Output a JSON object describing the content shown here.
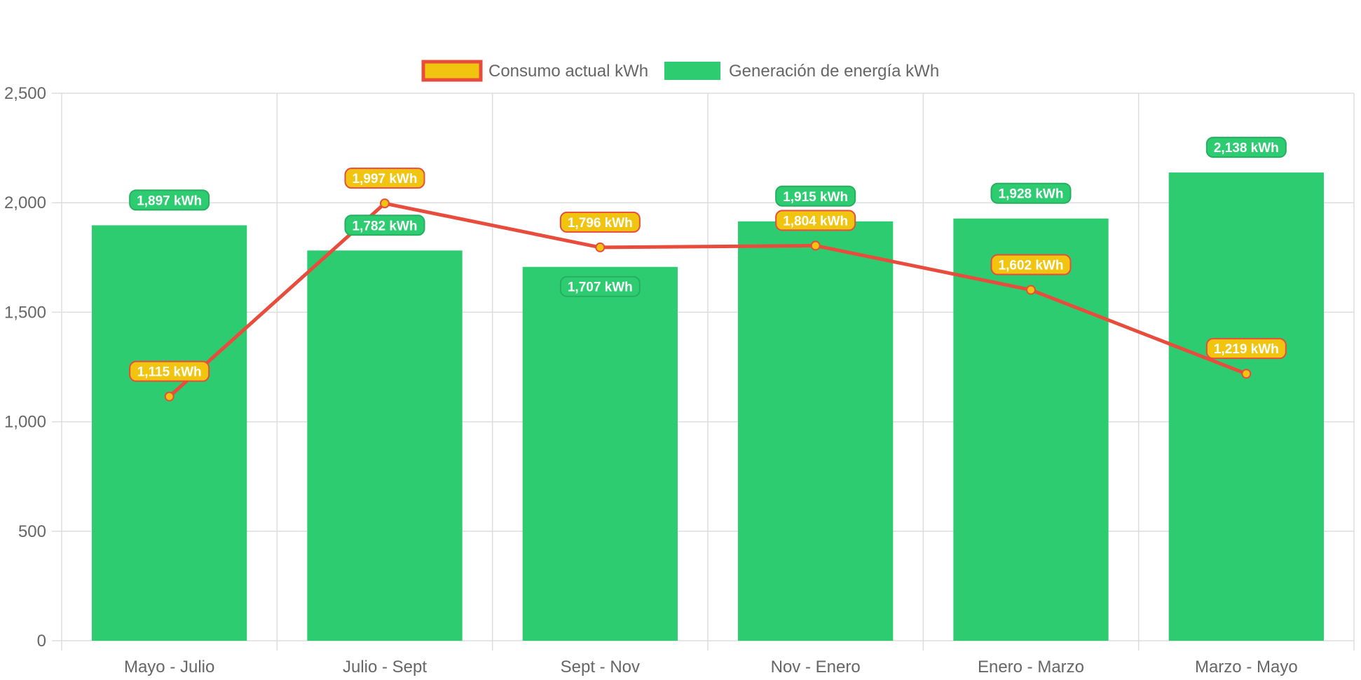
{
  "colors": {
    "bar": "#2ecc71",
    "line": "#e74c3c",
    "point_fill": "#f1c40f",
    "grid": "#dddddd",
    "tick_text": "#666666"
  },
  "label_unit": "kWh",
  "chart_data": {
    "type": "bar",
    "title": "",
    "xlabel": "",
    "ylabel": "",
    "ylim": [
      0,
      2500
    ],
    "yticks": [
      0,
      500,
      1000,
      1500,
      2000,
      2500
    ],
    "ytick_labels": [
      "0",
      "500",
      "1,000",
      "1,500",
      "2,000",
      "2,500"
    ],
    "grid": true,
    "legend_position": "top",
    "categories": [
      "Mayo - Julio",
      "Julio - Sept",
      "Sept - Nov",
      "Nov - Enero",
      "Enero - Marzo",
      "Marzo - Mayo"
    ],
    "series": [
      {
        "name": "Consumo actual kWh",
        "type": "line",
        "color": "#e74c3c",
        "point_color": "#f1c40f",
        "values": [
          1115,
          1997,
          1796,
          1804,
          1602,
          1219
        ],
        "labels": [
          "1,115 kWh",
          "1,997 kWh",
          "1,796 kWh",
          "1,804 kWh",
          "1,602 kWh",
          "1,219 kWh"
        ]
      },
      {
        "name": "Generación de energía kWh",
        "type": "bar",
        "color": "#2ecc71",
        "values": [
          1897,
          1782,
          1707,
          1915,
          1928,
          2138
        ],
        "labels": [
          "1,897 kWh",
          "1,782 kWh",
          "1,707 kWh",
          "1,915 kWh",
          "1,928 kWh",
          "2,138 kWh"
        ]
      }
    ]
  }
}
